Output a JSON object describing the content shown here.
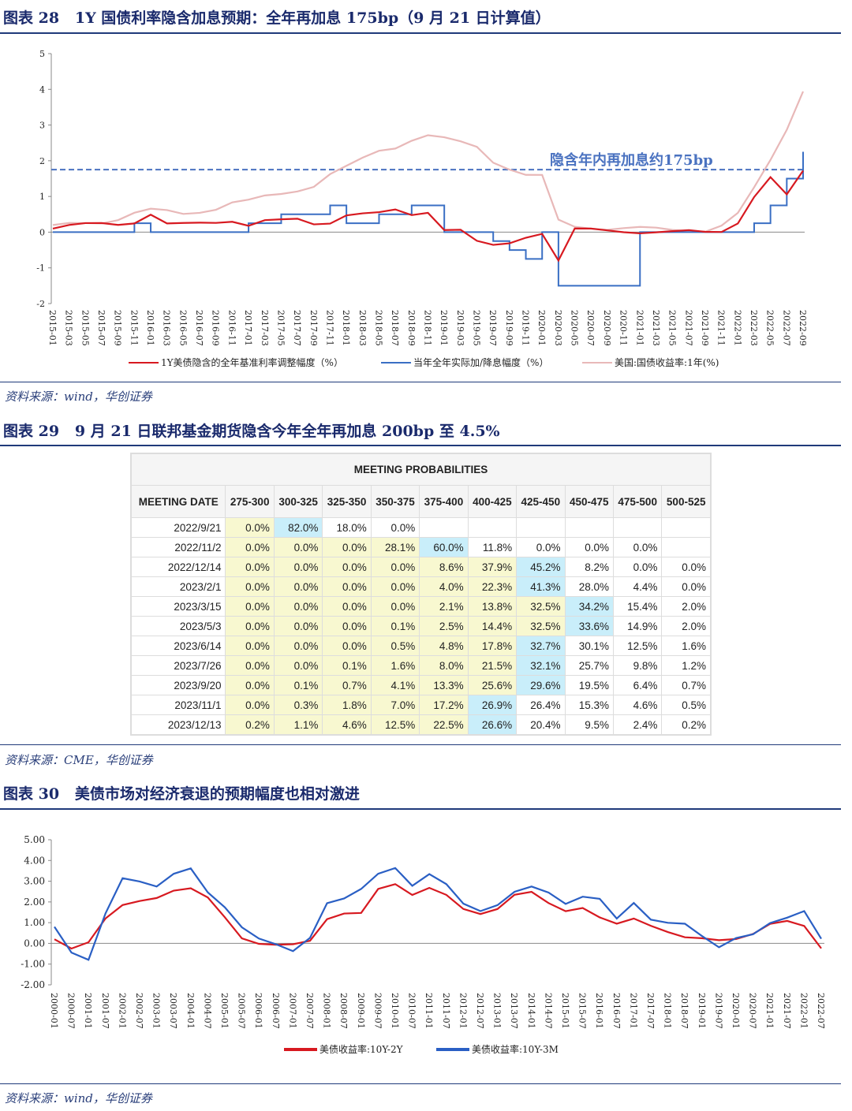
{
  "figure28": {
    "title": "图表 28   1Y 国债利率隐含加息预期：全年再加息 175bp（9 月 21 日计算值）",
    "source": "资料来源：wind，华创证券",
    "chart_data": {
      "type": "line",
      "ylim": [
        -2,
        5
      ],
      "yticks": [
        "5",
        "4",
        "3",
        "2",
        "1",
        "0",
        "-1",
        "-2"
      ],
      "x": [
        "2015-01",
        "2015-03",
        "2015-05",
        "2015-07",
        "2015-09",
        "2015-11",
        "2016-01",
        "2016-03",
        "2016-05",
        "2016-07",
        "2016-09",
        "2016-11",
        "2017-01",
        "2017-03",
        "2017-05",
        "2017-07",
        "2017-09",
        "2017-11",
        "2018-01",
        "2018-03",
        "2018-05",
        "2018-07",
        "2018-09",
        "2018-11",
        "2019-01",
        "2019-03",
        "2019-05",
        "2019-07",
        "2019-09",
        "2019-11",
        "2020-01",
        "2020-03",
        "2020-05",
        "2020-07",
        "2020-09",
        "2020-11",
        "2021-01",
        "2021-03",
        "2021-05",
        "2021-07",
        "2021-09",
        "2021-11",
        "2022-01",
        "2022-03",
        "2022-05",
        "2022-07",
        "2022-09"
      ],
      "series": [
        {
          "name": "1Y美债隐含的全年基准利率调整幅度（%）",
          "color": "#d71920",
          "values": [
            0.1,
            0.15,
            0.2,
            0.25,
            0.25,
            0.3,
            0.5,
            0.2,
            0.2,
            0.25,
            0.3,
            0.35,
            0.2,
            0.3,
            0.3,
            0.35,
            0.25,
            0.3,
            0.5,
            0.5,
            0.5,
            0.6,
            0.5,
            0.6,
            0.1,
            0.05,
            -0.3,
            -0.4,
            -0.3,
            -0.1,
            0.0,
            -0.8,
            0.05,
            0.05,
            0.05,
            0.05,
            0.02,
            0.0,
            -0.02,
            0.0,
            0.0,
            0.05,
            0.3,
            1.0,
            1.5,
            1.0,
            1.7
          ]
        },
        {
          "name": "当年全年实际加/降息幅度（%）",
          "color": "#3a6fc4",
          "step": true,
          "values": [
            0,
            0,
            0,
            0,
            0,
            0.25,
            0,
            0,
            0,
            0,
            0,
            0,
            0.25,
            0.25,
            0.5,
            0.5,
            0.5,
            0.75,
            0.25,
            0.25,
            0.5,
            0.5,
            0.75,
            0.75,
            0,
            0,
            0,
            -0.25,
            -0.5,
            -0.75,
            0,
            -1.5,
            -1.5,
            -1.5,
            -1.5,
            -1.5,
            0,
            0,
            0,
            0,
            0,
            0,
            0,
            0.25,
            0.75,
            1.5,
            2.25
          ]
        },
        {
          "name": "美国:国债收益率:1年(%)",
          "color": "#e8b8b8",
          "values": [
            0.2,
            0.25,
            0.3,
            0.3,
            0.35,
            0.5,
            0.6,
            0.6,
            0.55,
            0.6,
            0.65,
            0.8,
            0.85,
            1.0,
            1.1,
            1.2,
            1.3,
            1.6,
            1.8,
            2.05,
            2.3,
            2.4,
            2.6,
            2.7,
            2.6,
            2.5,
            2.4,
            2.0,
            1.8,
            1.6,
            1.55,
            0.3,
            0.15,
            0.15,
            0.12,
            0.12,
            0.1,
            0.07,
            0.05,
            0.07,
            0.07,
            0.2,
            0.5,
            1.2,
            2.0,
            2.9,
            4.0
          ]
        }
      ],
      "reference_line": {
        "value": 1.75,
        "label": "隐含年内再加息约175bp",
        "color": "#4a72c0"
      }
    }
  },
  "figure29": {
    "title": "图表 29   9 月 21 日联邦基金期货隐含今年全年再加息 200bp 至 4.5%",
    "source": "资料来源：CME，华创证券",
    "table": {
      "caption": "MEETING PROBABILITIES",
      "date_header": "MEETING DATE",
      "columns": [
        "275-300",
        "300-325",
        "325-350",
        "350-375",
        "375-400",
        "400-425",
        "425-450",
        "450-475",
        "475-500",
        "500-525"
      ],
      "colors": {
        "yellow": "#f8f8d0",
        "blue": "#c9eefa"
      },
      "rows": [
        {
          "date": "2022/9/21",
          "highlight": 1,
          "values": [
            "0.0%",
            "82.0%",
            "18.0%",
            "0.0%",
            "",
            "",
            "",
            "",
            "",
            ""
          ]
        },
        {
          "date": "2022/11/2",
          "highlight": 4,
          "values": [
            "0.0%",
            "0.0%",
            "0.0%",
            "28.1%",
            "60.0%",
            "11.8%",
            "0.0%",
            "0.0%",
            "0.0%",
            ""
          ]
        },
        {
          "date": "2022/12/14",
          "highlight": 6,
          "values": [
            "0.0%",
            "0.0%",
            "0.0%",
            "0.0%",
            "8.6%",
            "37.9%",
            "45.2%",
            "8.2%",
            "0.0%",
            "0.0%"
          ]
        },
        {
          "date": "2023/2/1",
          "highlight": 6,
          "values": [
            "0.0%",
            "0.0%",
            "0.0%",
            "0.0%",
            "4.0%",
            "22.3%",
            "41.3%",
            "28.0%",
            "4.4%",
            "0.0%"
          ]
        },
        {
          "date": "2023/3/15",
          "highlight": 7,
          "values": [
            "0.0%",
            "0.0%",
            "0.0%",
            "0.0%",
            "2.1%",
            "13.8%",
            "32.5%",
            "34.2%",
            "15.4%",
            "2.0%"
          ]
        },
        {
          "date": "2023/5/3",
          "highlight": 7,
          "values": [
            "0.0%",
            "0.0%",
            "0.0%",
            "0.1%",
            "2.5%",
            "14.4%",
            "32.5%",
            "33.6%",
            "14.9%",
            "2.0%"
          ]
        },
        {
          "date": "2023/6/14",
          "highlight": 6,
          "values": [
            "0.0%",
            "0.0%",
            "0.0%",
            "0.5%",
            "4.8%",
            "17.8%",
            "32.7%",
            "30.1%",
            "12.5%",
            "1.6%"
          ]
        },
        {
          "date": "2023/7/26",
          "highlight": 6,
          "values": [
            "0.0%",
            "0.0%",
            "0.1%",
            "1.6%",
            "8.0%",
            "21.5%",
            "32.1%",
            "25.7%",
            "9.8%",
            "1.2%"
          ]
        },
        {
          "date": "2023/9/20",
          "highlight": 6,
          "values": [
            "0.0%",
            "0.1%",
            "0.7%",
            "4.1%",
            "13.3%",
            "25.6%",
            "29.6%",
            "19.5%",
            "6.4%",
            "0.7%"
          ]
        },
        {
          "date": "2023/11/1",
          "highlight": 5,
          "values": [
            "0.0%",
            "0.3%",
            "1.8%",
            "7.0%",
            "17.2%",
            "26.9%",
            "26.4%",
            "15.3%",
            "4.6%",
            "0.5%"
          ]
        },
        {
          "date": "2023/12/13",
          "highlight": 5,
          "values": [
            "0.2%",
            "1.1%",
            "4.6%",
            "12.5%",
            "22.5%",
            "26.6%",
            "20.4%",
            "9.5%",
            "2.4%",
            "0.2%"
          ]
        }
      ]
    }
  },
  "figure30": {
    "title": "图表 30   美债市场对经济衰退的预期幅度也相对激进",
    "source": "资料来源：wind，华创证券",
    "chart_data": {
      "type": "line",
      "ylim": [
        -2,
        5
      ],
      "yticks": [
        "5.00",
        "4.00",
        "3.00",
        "2.00",
        "1.00",
        "0.00",
        "-1.00",
        "-2.00"
      ],
      "x": [
        "2000-01",
        "2000-07",
        "2001-01",
        "2001-07",
        "2002-01",
        "2002-07",
        "2003-01",
        "2003-07",
        "2004-01",
        "2004-07",
        "2005-01",
        "2005-07",
        "2006-01",
        "2006-07",
        "2007-01",
        "2007-07",
        "2008-01",
        "2008-07",
        "2009-01",
        "2009-07",
        "2010-01",
        "2010-07",
        "2011-01",
        "2011-07",
        "2012-01",
        "2012-07",
        "2013-01",
        "2013-07",
        "2014-01",
        "2014-07",
        "2015-01",
        "2015-07",
        "2016-01",
        "2016-07",
        "2017-01",
        "2017-07",
        "2018-01",
        "2018-07",
        "2019-01",
        "2019-07",
        "2020-01",
        "2020-07",
        "2021-01",
        "2021-07",
        "2022-01",
        "2022-07"
      ],
      "series": [
        {
          "name": "美债收益率:10Y-2Y",
          "color": "#d71920",
          "values": [
            0.2,
            -0.3,
            0.0,
            1.2,
            1.9,
            2.1,
            2.2,
            2.5,
            2.6,
            2.2,
            1.3,
            0.3,
            0.0,
            -0.1,
            -0.1,
            0.1,
            1.2,
            1.5,
            1.5,
            2.6,
            2.8,
            2.3,
            2.7,
            2.4,
            1.7,
            1.4,
            1.6,
            2.3,
            2.5,
            2.0,
            1.6,
            1.7,
            1.2,
            0.9,
            1.2,
            0.9,
            0.6,
            0.3,
            0.2,
            0.1,
            0.2,
            0.5,
            1.0,
            1.1,
            0.8,
            -0.3
          ]
        },
        {
          "name": "美债收益率:10Y-3M",
          "color": "#2a5fc4",
          "values": [
            0.8,
            -0.5,
            -0.8,
            1.5,
            3.2,
            3.0,
            2.7,
            3.3,
            3.6,
            2.5,
            1.8,
            0.8,
            0.2,
            -0.1,
            -0.4,
            0.3,
            2.0,
            2.2,
            2.6,
            3.3,
            3.6,
            2.8,
            3.4,
            2.9,
            1.9,
            1.5,
            1.8,
            2.5,
            2.8,
            2.5,
            1.9,
            2.2,
            2.1,
            1.2,
            2.0,
            1.2,
            1.0,
            0.9,
            0.3,
            -0.2,
            0.3,
            0.5,
            1.0,
            1.2,
            1.5,
            0.2
          ]
        }
      ]
    }
  }
}
